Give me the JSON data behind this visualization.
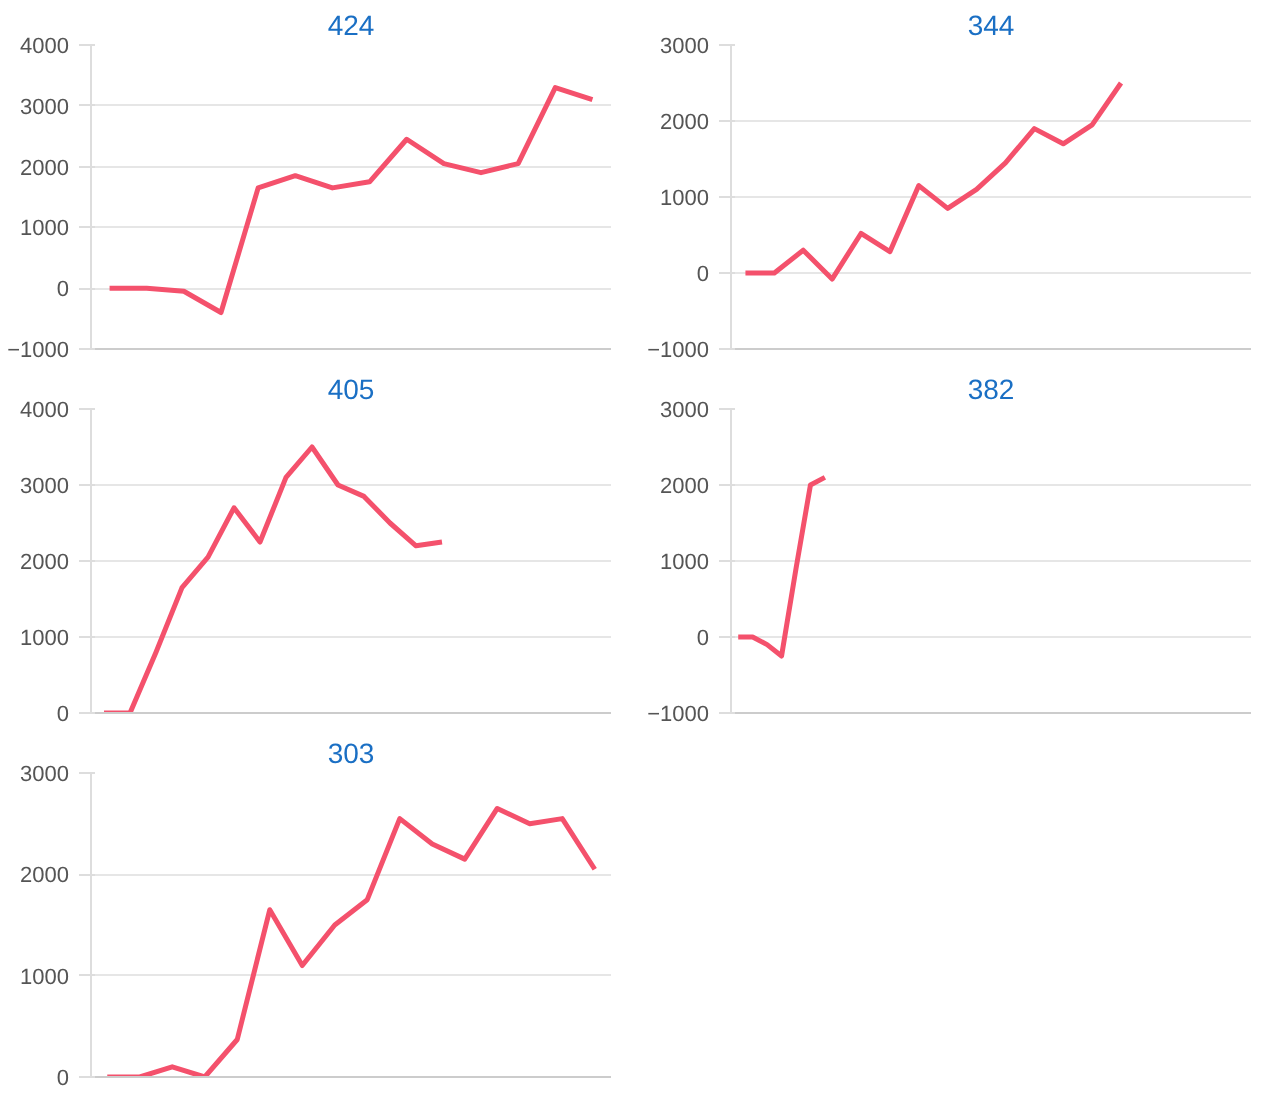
{
  "chart_data": [
    {
      "type": "line",
      "title": "424",
      "categories": [
        null,
        null,
        null,
        null,
        null,
        null,
        null,
        null,
        null,
        null,
        null,
        null,
        null,
        null
      ],
      "series": [
        {
          "color": "#f4516c",
          "values": [
            0,
            0,
            -50,
            -400,
            1650,
            1850,
            1650,
            1750,
            2450,
            2050,
            1900,
            2050,
            3300,
            3100
          ]
        }
      ],
      "ylim": [
        -1000,
        4000
      ],
      "yticks": [
        -1000,
        0,
        1000,
        2000,
        3000,
        4000
      ],
      "grid": "y",
      "tick_labels": "y",
      "line_style": "solid"
    },
    {
      "type": "line",
      "title": "405",
      "categories": [
        null,
        null,
        null,
        null,
        null,
        null,
        null,
        null,
        null,
        null,
        null,
        null,
        null,
        null,
        null,
        null,
        null,
        null,
        null,
        null
      ],
      "series": [
        {
          "color": "#f4516c",
          "values": [
            0,
            0,
            800,
            1650,
            2050,
            2700,
            2250,
            3100,
            3500,
            3000,
            2850,
            2500,
            2200,
            2250,
            null,
            null,
            null,
            null,
            null,
            null
          ]
        }
      ],
      "ylim": [
        0,
        4000
      ],
      "yticks": [
        0,
        1000,
        2000,
        3000,
        4000
      ],
      "grid": "y",
      "tick_labels": "y",
      "line_style": "solid"
    },
    {
      "type": "line",
      "title": "303",
      "categories": [
        null,
        null,
        null,
        null,
        null,
        null,
        null,
        null,
        null,
        null,
        null,
        null,
        null,
        null,
        null,
        null
      ],
      "series": [
        {
          "color": "#f4516c",
          "values": [
            0,
            0,
            100,
            0,
            370,
            1650,
            1100,
            1500,
            1750,
            2550,
            2300,
            2150,
            2650,
            2500,
            2550,
            2050
          ]
        }
      ],
      "ylim": [
        0,
        3000
      ],
      "yticks": [
        0,
        1000,
        2000,
        3000
      ],
      "grid": "y",
      "tick_labels": "y",
      "line_style": "solid"
    },
    {
      "type": "line",
      "title": "344",
      "categories": [
        null,
        null,
        null,
        null,
        null,
        null,
        null,
        null,
        null,
        null,
        null,
        null,
        null,
        null,
        null,
        null,
        null,
        null
      ],
      "series": [
        {
          "color": "#f4516c",
          "values": [
            0,
            0,
            300,
            -80,
            520,
            280,
            1150,
            850,
            1100,
            1450,
            1900,
            1700,
            1950,
            2500,
            null,
            null,
            null,
            null
          ]
        }
      ],
      "ylim": [
        -1000,
        3000
      ],
      "yticks": [
        -1000,
        0,
        1000,
        2000,
        3000
      ],
      "grid": "y",
      "tick_labels": "y",
      "line_style": "solid"
    },
    {
      "type": "line",
      "title": "382",
      "categories": [
        null,
        null,
        null,
        null,
        null,
        null,
        null,
        null,
        null,
        null,
        null,
        null,
        null,
        null,
        null,
        null,
        null,
        null,
        null,
        null,
        null,
        null,
        null,
        null,
        null,
        null,
        null,
        null,
        null,
        null,
        null,
        null,
        null,
        null,
        null,
        null
      ],
      "series": [
        {
          "color": "#f4516c",
          "values": [
            0,
            0,
            -100,
            -250,
            900,
            2000,
            2100,
            null,
            null,
            null,
            null,
            null,
            null,
            null,
            null,
            null,
            null,
            null,
            null,
            null,
            null,
            null,
            null,
            null,
            null,
            null,
            null,
            null,
            null,
            null,
            null,
            null,
            null,
            null,
            null,
            null
          ]
        }
      ],
      "ylim": [
        -1000,
        3000
      ],
      "yticks": [
        -1000,
        0,
        1000,
        2000,
        3000
      ],
      "grid": "y",
      "tick_labels": "y",
      "line_style": "solid"
    }
  ]
}
